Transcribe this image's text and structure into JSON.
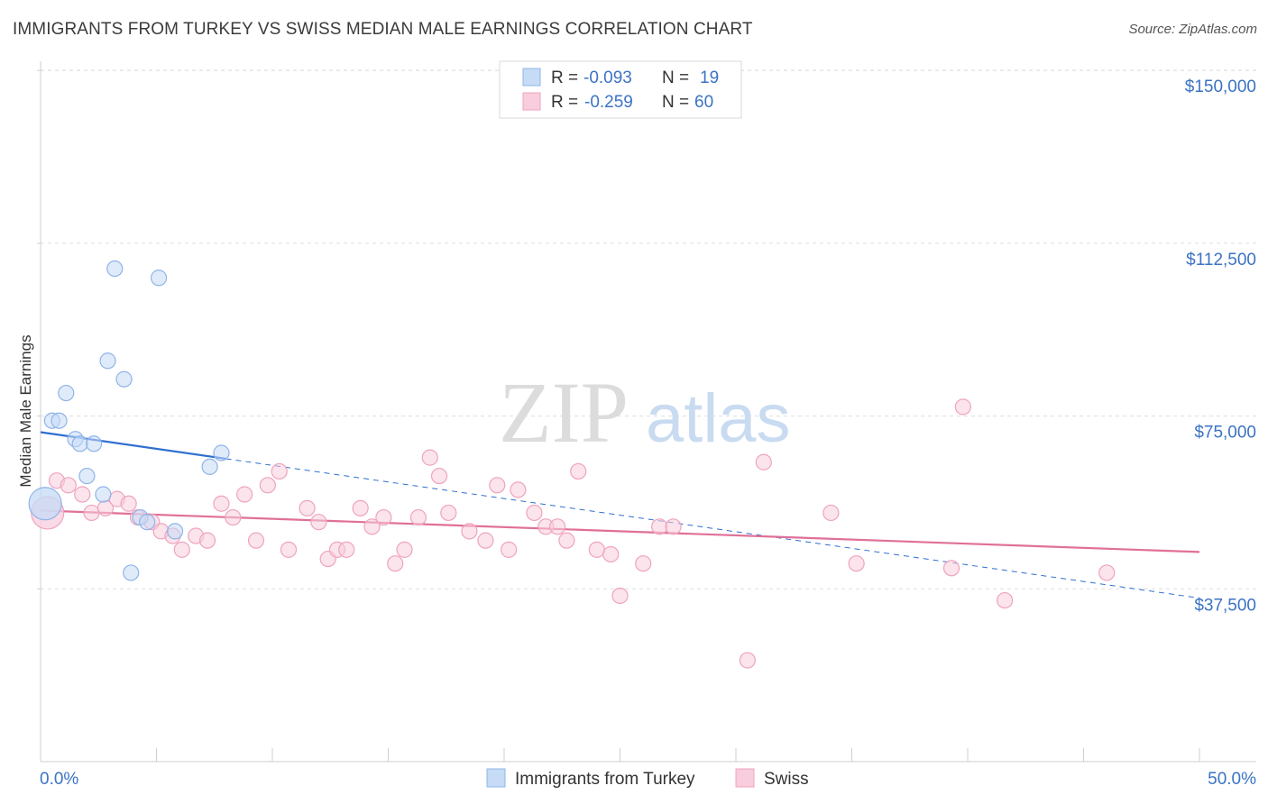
{
  "title": "IMMIGRANTS FROM TURKEY VS SWISS MEDIAN MALE EARNINGS CORRELATION CHART",
  "source": "Source: ZipAtlas.com",
  "watermark": {
    "zip": "ZIP",
    "atlas": "atlas"
  },
  "chart_data": {
    "type": "scatter",
    "ylabel": "Median Male Earnings",
    "xlim": [
      0,
      50
    ],
    "ylim": [
      0,
      152000
    ],
    "x_tick_labels": [
      "0.0%",
      "50.0%"
    ],
    "y_ticks": [
      37500,
      75000,
      112500,
      150000
    ],
    "y_tick_labels": [
      "$37,500",
      "$75,000",
      "$112,500",
      "$150,000"
    ],
    "legend": {
      "rows": [
        {
          "r_label": "R = ",
          "r_value": "-0.093",
          "n_label": "N = ",
          "n_value": "19"
        },
        {
          "r_label": "R = ",
          "r_value": "-0.259",
          "n_label": "N = ",
          "n_value": "60"
        }
      ]
    },
    "series": [
      {
        "name": "Immigrants from Turkey",
        "color": "#8fb4e8",
        "fill": "#c6dbf6",
        "line_color": "#2f6fd0",
        "trend": {
          "x0": 0,
          "y0": 71500,
          "x1": 50,
          "y1": 35500,
          "solid_until_x": 8
        },
        "points": [
          [
            0.2,
            56000
          ],
          [
            0.5,
            74000
          ],
          [
            0.8,
            74000
          ],
          [
            1.1,
            80000
          ],
          [
            1.5,
            70000
          ],
          [
            1.7,
            69000
          ],
          [
            2.0,
            62000
          ],
          [
            2.3,
            69000
          ],
          [
            2.7,
            58000
          ],
          [
            2.9,
            87000
          ],
          [
            3.2,
            107000
          ],
          [
            3.6,
            83000
          ],
          [
            3.9,
            41000
          ],
          [
            4.3,
            53000
          ],
          [
            4.6,
            52000
          ],
          [
            5.1,
            105000
          ],
          [
            5.8,
            50000
          ],
          [
            7.3,
            64000
          ],
          [
            7.8,
            67000
          ]
        ],
        "big_point": [
          0.2,
          56000
        ]
      },
      {
        "name": "Swiss",
        "color": "#efa3be",
        "fill": "#f8cddd",
        "line_color": "#e07098",
        "trend": {
          "x0": 0,
          "y0": 54500,
          "x1": 50,
          "y1": 45500
        },
        "points": [
          [
            0.7,
            61000
          ],
          [
            1.2,
            60000
          ],
          [
            1.8,
            58000
          ],
          [
            2.2,
            54000
          ],
          [
            2.8,
            55000
          ],
          [
            3.3,
            57000
          ],
          [
            3.8,
            56000
          ],
          [
            4.2,
            53000
          ],
          [
            4.8,
            52000
          ],
          [
            5.2,
            50000
          ],
          [
            5.7,
            49000
          ],
          [
            6.1,
            46000
          ],
          [
            6.7,
            49000
          ],
          [
            7.2,
            48000
          ],
          [
            7.8,
            56000
          ],
          [
            8.3,
            53000
          ],
          [
            8.8,
            58000
          ],
          [
            9.3,
            48000
          ],
          [
            9.8,
            60000
          ],
          [
            10.3,
            63000
          ],
          [
            10.7,
            46000
          ],
          [
            11.5,
            55000
          ],
          [
            12.0,
            52000
          ],
          [
            12.4,
            44000
          ],
          [
            12.8,
            46000
          ],
          [
            13.2,
            46000
          ],
          [
            13.8,
            55000
          ],
          [
            14.3,
            51000
          ],
          [
            14.8,
            53000
          ],
          [
            15.3,
            43000
          ],
          [
            15.7,
            46000
          ],
          [
            16.3,
            53000
          ],
          [
            16.8,
            66000
          ],
          [
            17.2,
            62000
          ],
          [
            17.6,
            54000
          ],
          [
            18.5,
            50000
          ],
          [
            19.2,
            48000
          ],
          [
            19.7,
            60000
          ],
          [
            20.2,
            46000
          ],
          [
            20.6,
            59000
          ],
          [
            21.3,
            54000
          ],
          [
            21.8,
            51000
          ],
          [
            22.3,
            51000
          ],
          [
            22.7,
            48000
          ],
          [
            23.2,
            63000
          ],
          [
            24.0,
            46000
          ],
          [
            24.6,
            45000
          ],
          [
            25.0,
            36000
          ],
          [
            26.0,
            43000
          ],
          [
            26.7,
            51000
          ],
          [
            27.3,
            51000
          ],
          [
            30.5,
            22000
          ],
          [
            31.2,
            65000
          ],
          [
            34.1,
            54000
          ],
          [
            35.2,
            43000
          ],
          [
            39.3,
            42000
          ],
          [
            39.8,
            77000
          ],
          [
            41.6,
            35000
          ],
          [
            46.0,
            41000
          ],
          [
            0.3,
            54000
          ]
        ],
        "big_point": [
          0.3,
          54000
        ]
      }
    ]
  }
}
